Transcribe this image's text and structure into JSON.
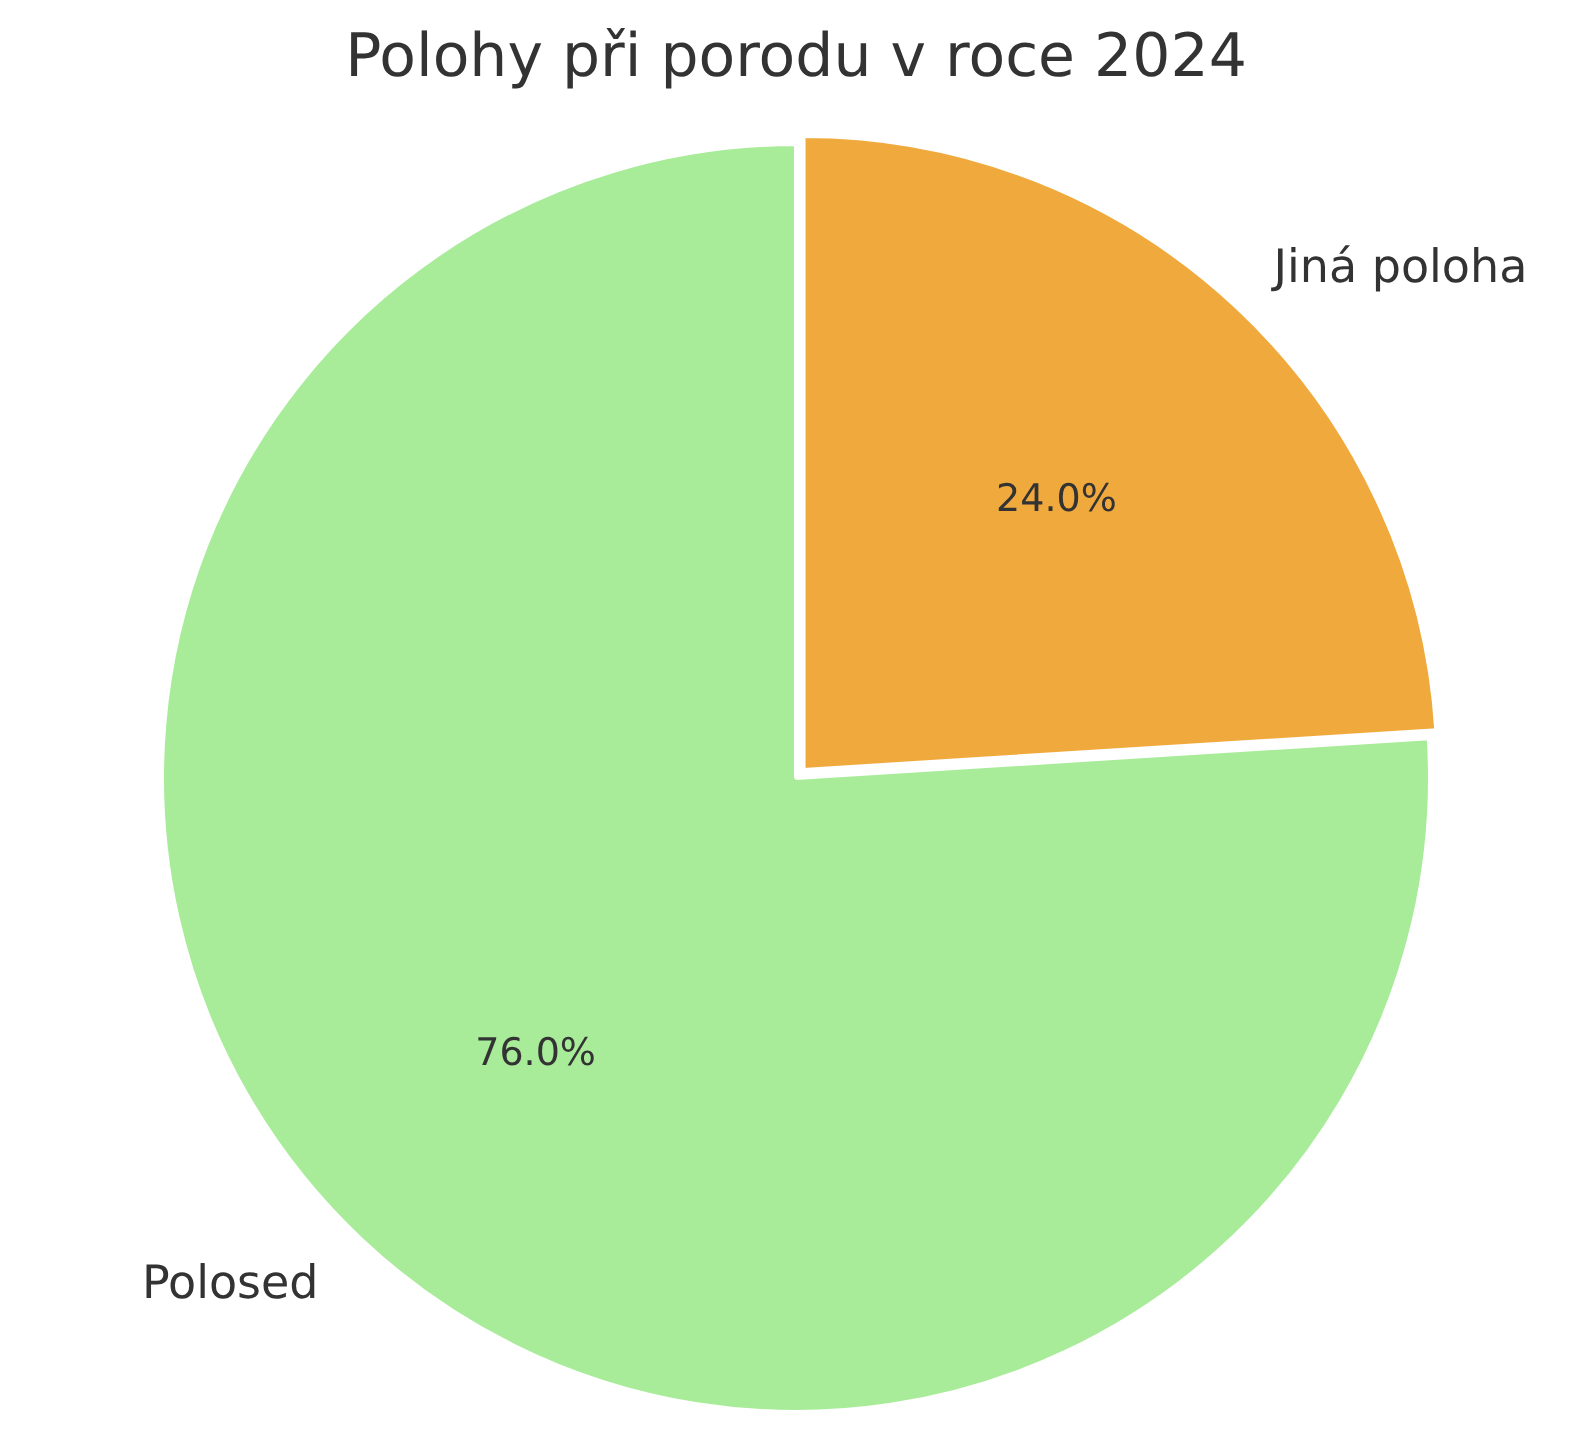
{
  "chart_data": {
    "type": "pie",
    "title": "Polohy při porodu v roce 2024",
    "categories": [
      "Jiná poloha",
      "Polosed"
    ],
    "values": [
      24.0,
      76.0
    ],
    "value_labels": [
      "24.0%",
      "76.0%"
    ],
    "colors": [
      "#f0a93c",
      "#a8ec9a"
    ],
    "legend": false
  }
}
